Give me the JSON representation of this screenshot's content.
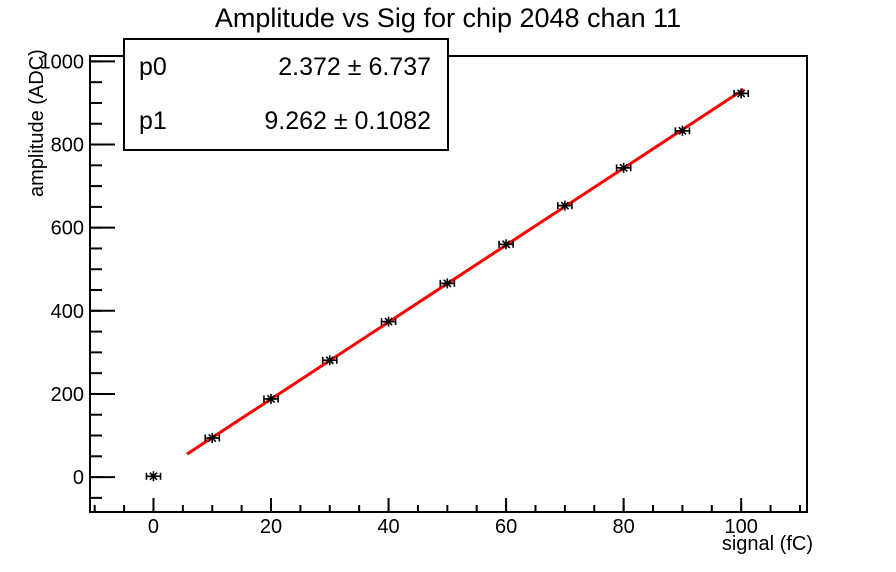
{
  "title": "Amplitude vs Sig for chip 2048 chan 11",
  "stats": {
    "rows": [
      {
        "name": "p0",
        "value": "2.372 ± 6.737"
      },
      {
        "name": "p1",
        "value": "9.262 ± 0.1082"
      }
    ]
  },
  "axes": {
    "x": {
      "label": "signal (fC)",
      "min": -10.8,
      "max": 111.2,
      "major_ticks": [
        0,
        20,
        40,
        60,
        80,
        100
      ],
      "minor_step": 5
    },
    "y": {
      "label": "amplitude (ADC)",
      "min": -84,
      "max": 1013,
      "major_ticks": [
        0,
        200,
        400,
        600,
        800,
        1000
      ],
      "minor_step": 50
    }
  },
  "chart_data": {
    "type": "scatter",
    "title": "Amplitude vs Sig for chip 2048 chan 11",
    "xlabel": "signal (fC)",
    "ylabel": "amplitude (ADC)",
    "xlim": [
      -10.8,
      111.2
    ],
    "ylim": [
      -84,
      1013
    ],
    "grid": false,
    "x": [
      0,
      10,
      20,
      30,
      40,
      50,
      60,
      70,
      80,
      90,
      100
    ],
    "y": [
      2,
      94,
      188,
      281,
      374,
      466,
      560,
      653,
      744,
      833,
      923
    ],
    "x_error": 1.2,
    "marker": "asterisk",
    "fit": {
      "type": "linear",
      "p0": 2.372,
      "p1": 9.262,
      "x_start": 5.7,
      "x_end": 100.4
    }
  },
  "colors": {
    "fit_line": "#ff0000",
    "marker": "#000000",
    "frame": "#000000",
    "background": "#ffffff"
  }
}
